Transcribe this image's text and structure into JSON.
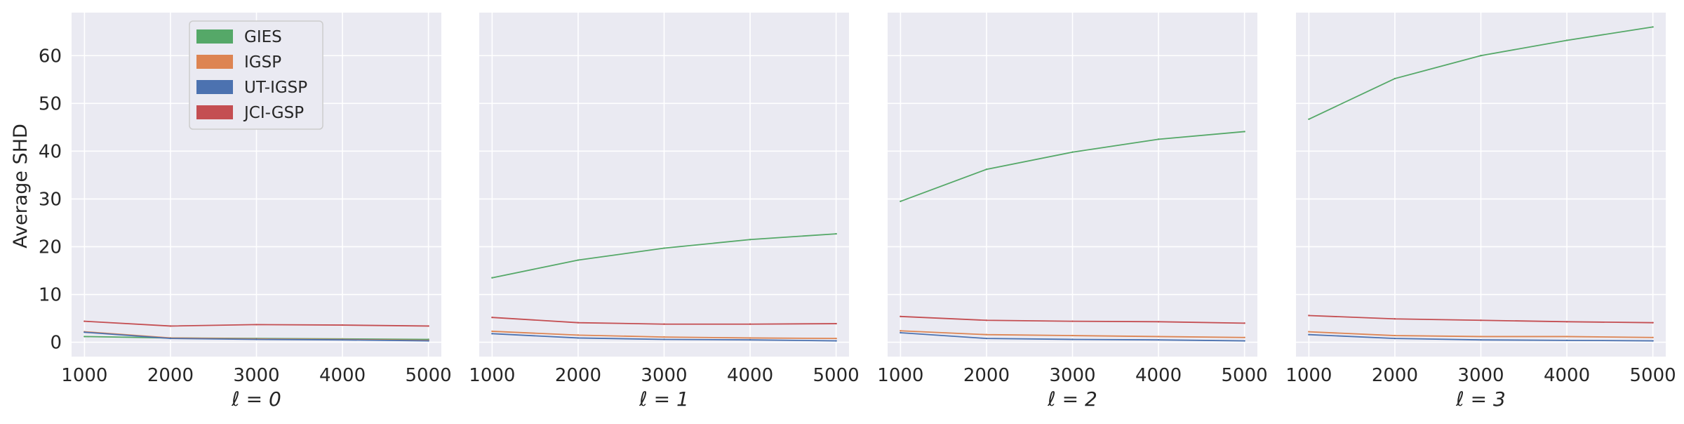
{
  "chart_data": {
    "type": "line",
    "ylabel": "Average SHD",
    "ylim": [
      -3,
      69
    ],
    "yticks": [
      0,
      10,
      20,
      30,
      40,
      50,
      60
    ],
    "xlim": [
      850,
      5150
    ],
    "xticks": [
      1000,
      2000,
      3000,
      4000,
      5000
    ],
    "grid": true,
    "legend": {
      "placement": "top-left of first panel",
      "entries": [
        {
          "name": "GIES",
          "color": "#55A868"
        },
        {
          "name": "IGSP",
          "color": "#DD8452"
        },
        {
          "name": "UT-IGSP",
          "color": "#4C72B0"
        },
        {
          "name": "JCI-GSP",
          "color": "#C44E52"
        }
      ]
    },
    "panels": [
      {
        "xlabel": "ℓ = 0",
        "x": [
          1000,
          2000,
          3000,
          4000,
          5000
        ],
        "series": [
          {
            "name": "GIES",
            "values": [
              1.2,
              0.9,
              0.8,
              0.7,
              0.6
            ]
          },
          {
            "name": "IGSP",
            "values": [
              2.2,
              0.9,
              0.7,
              0.6,
              0.4
            ]
          },
          {
            "name": "UT-IGSP",
            "values": [
              2.1,
              0.8,
              0.6,
              0.5,
              0.3
            ]
          },
          {
            "name": "JCI-GSP",
            "values": [
              4.4,
              3.4,
              3.7,
              3.6,
              3.4
            ]
          }
        ]
      },
      {
        "xlabel": "ℓ = 1",
        "x": [
          1000,
          2000,
          3000,
          4000,
          5000
        ],
        "series": [
          {
            "name": "GIES",
            "values": [
              13.5,
              17.2,
              19.7,
              21.5,
              22.7
            ]
          },
          {
            "name": "IGSP",
            "values": [
              2.3,
              1.5,
              1.1,
              0.9,
              0.8
            ]
          },
          {
            "name": "UT-IGSP",
            "values": [
              1.8,
              0.9,
              0.6,
              0.5,
              0.3
            ]
          },
          {
            "name": "JCI-GSP",
            "values": [
              5.2,
              4.1,
              3.8,
              3.8,
              3.9
            ]
          }
        ]
      },
      {
        "xlabel": "ℓ = 2",
        "x": [
          1000,
          2000,
          3000,
          4000,
          5000
        ],
        "series": [
          {
            "name": "GIES",
            "values": [
              29.5,
              36.2,
              39.8,
              42.5,
              44.1
            ]
          },
          {
            "name": "IGSP",
            "values": [
              2.4,
              1.6,
              1.4,
              1.2,
              1.0
            ]
          },
          {
            "name": "UT-IGSP",
            "values": [
              2.0,
              0.8,
              0.6,
              0.5,
              0.3
            ]
          },
          {
            "name": "JCI-GSP",
            "values": [
              5.4,
              4.6,
              4.4,
              4.3,
              4.0
            ]
          }
        ]
      },
      {
        "xlabel": "ℓ = 3",
        "x": [
          1000,
          2000,
          3000,
          4000,
          5000
        ],
        "series": [
          {
            "name": "GIES",
            "values": [
              46.7,
              55.2,
              60.0,
              63.2,
              66.0
            ]
          },
          {
            "name": "IGSP",
            "values": [
              2.2,
              1.4,
              1.2,
              1.2,
              1.0
            ]
          },
          {
            "name": "UT-IGSP",
            "values": [
              1.6,
              0.8,
              0.5,
              0.4,
              0.3
            ]
          },
          {
            "name": "JCI-GSP",
            "values": [
              5.6,
              4.9,
              4.6,
              4.3,
              4.1
            ]
          }
        ]
      }
    ]
  }
}
